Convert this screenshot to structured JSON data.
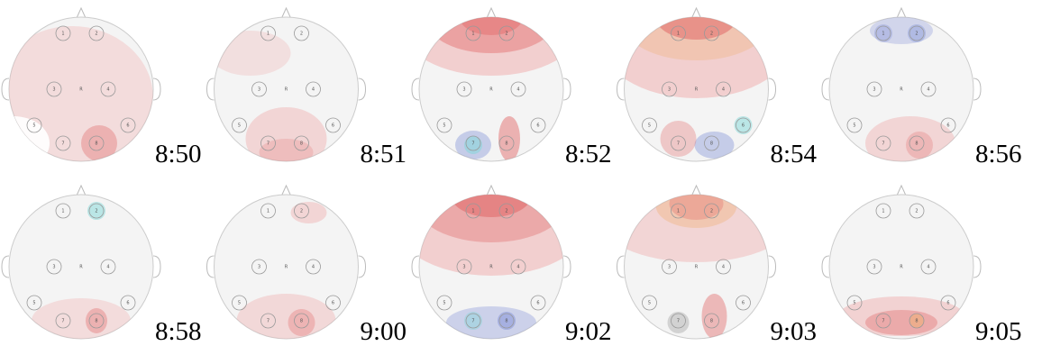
{
  "maps": [
    {
      "time": "8:50"
    },
    {
      "time": "8:51"
    },
    {
      "time": "8:52"
    },
    {
      "time": "8:54"
    },
    {
      "time": "8:56"
    },
    {
      "time": "8:58"
    },
    {
      "time": "9:00"
    },
    {
      "time": "9:02"
    },
    {
      "time": "9:03"
    },
    {
      "time": "9:05"
    }
  ],
  "electrode_labels": [
    "1",
    "2",
    "3",
    "4",
    "5",
    "6",
    "7",
    "8"
  ],
  "reference_label": "R"
}
